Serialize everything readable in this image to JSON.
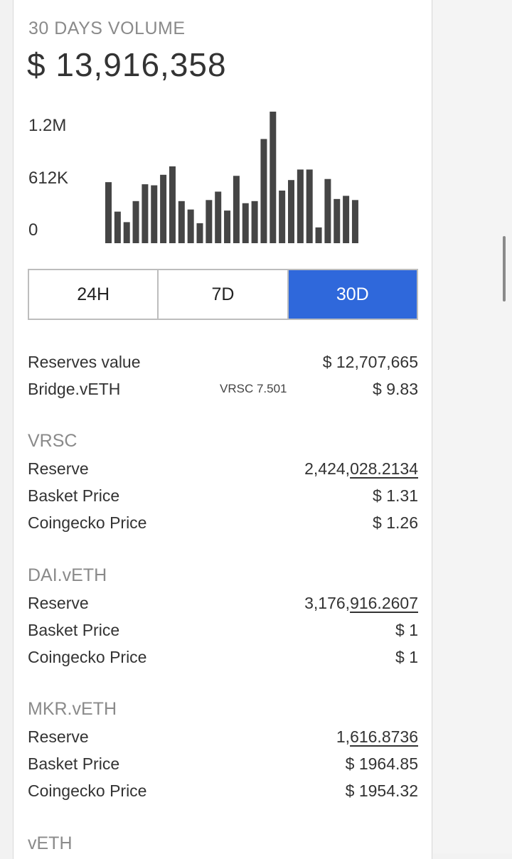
{
  "volume": {
    "label": "30 DAYS VOLUME",
    "value": "$ 13,916,358"
  },
  "chart_data": {
    "type": "bar",
    "ylim": [
      0,
      1250000
    ],
    "y_tick_labels": [
      "1.2M",
      "612K",
      "0"
    ],
    "y_ticks": [
      1200000,
      612000,
      0
    ],
    "values": [
      580000,
      300000,
      200000,
      400000,
      560000,
      550000,
      650000,
      730000,
      400000,
      320000,
      190000,
      410000,
      490000,
      310000,
      640000,
      380000,
      400000,
      990000,
      1250000,
      500000,
      600000,
      700000,
      700000,
      150000,
      610000,
      420000,
      450000,
      410000
    ]
  },
  "ranges": {
    "options": [
      "24H",
      "7D",
      "30D"
    ],
    "selected": "30D"
  },
  "summary": {
    "reserves_label": "Reserves value",
    "reserves_value": "$ 12,707,665",
    "bridge_label": "Bridge.vETH",
    "bridge_mid": "VRSC 7.501",
    "bridge_value": "$ 9.83"
  },
  "currencies": [
    {
      "name": "VRSC",
      "reserve_label": "Reserve",
      "reserve_a": "2,424,",
      "reserve_b": "028.2134",
      "basket_label": "Basket Price",
      "basket": "$ 1.31",
      "coingecko_label": "Coingecko Price",
      "coingecko": "$ 1.26"
    },
    {
      "name": "DAI.vETH",
      "reserve_label": "Reserve",
      "reserve_a": "3,176,",
      "reserve_b": "916.2607",
      "basket_label": "Basket Price",
      "basket": "$ 1",
      "coingecko_label": "Coingecko Price",
      "coingecko": "$ 1"
    },
    {
      "name": "MKR.vETH",
      "reserve_label": "Reserve",
      "reserve_a": "1,",
      "reserve_b": "616.8736",
      "basket_label": "Basket Price",
      "basket": "$ 1964.85",
      "coingecko_label": "Coingecko Price",
      "coingecko": "$ 1954.32"
    },
    {
      "name": "vETH"
    }
  ],
  "colors": {
    "accent": "#2f68db",
    "bar": "#454545",
    "muted": "#8a8a8a"
  }
}
